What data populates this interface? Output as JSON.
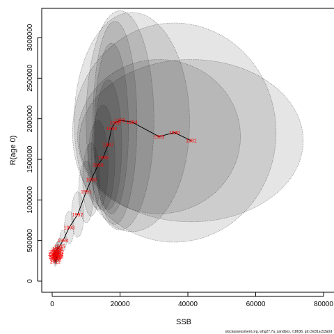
{
  "chart_data": {
    "type": "scatter",
    "title": "",
    "xlabel": "SSB",
    "ylabel": "R(age 0)",
    "xlim": [
      -3000,
      83000
    ],
    "ylim": [
      -150000,
      3250000
    ],
    "xticks": [
      0,
      20000,
      40000,
      60000,
      80000
    ],
    "xtick_labels": [
      "0",
      "20000",
      "40000",
      "60000",
      "80000"
    ],
    "yticks": [
      0,
      500000,
      1000000,
      1500000,
      2000000,
      2500000,
      3000000
    ],
    "ytick_labels": [
      "0",
      "500000",
      "1000000",
      "1500000",
      "2000000",
      "2500000",
      "3000000"
    ],
    "grid": false,
    "footer": "stockassessment.org, whg27.7a_sandbox, r18636, git:c9c81ac53a0d",
    "points": [
      {
        "year": "1981",
        "ssb": 41000,
        "rec": 1730000,
        "rx": 33000,
        "ry": 1000000
      },
      {
        "year": "1980",
        "ssb": 36000,
        "rec": 1830000,
        "rx": 30000,
        "ry": 1350000
      },
      {
        "year": "1983",
        "ssb": 31500,
        "rec": 1780000,
        "rx": 24000,
        "ry": 950000
      },
      {
        "year": "1984",
        "ssb": 23500,
        "rec": 1960000,
        "rx": 17000,
        "ry": 1350000
      },
      {
        "year": "1985",
        "ssb": 20000,
        "rec": 1980000,
        "rx": 10000,
        "ry": 1350000
      },
      {
        "year": "1986",
        "ssb": 18500,
        "rec": 1950000,
        "rx": 6500,
        "ry": 1250000
      },
      {
        "year": "1988",
        "ssb": 17500,
        "rec": 1880000,
        "rx": 5000,
        "ry": 1050000
      },
      {
        "year": "1987",
        "ssb": 16500,
        "rec": 1680000,
        "rx": 4000,
        "ry": 800000
      },
      {
        "year": "1988",
        "ssb": 15000,
        "rec": 1520000,
        "rx": 3500,
        "ry": 650000
      },
      {
        "year": "1989",
        "ssb": 13500,
        "rec": 1430000,
        "rx": 3000,
        "ry": 550000
      },
      {
        "year": "1990",
        "ssb": 11500,
        "rec": 1250000,
        "rx": 2500,
        "ry": 450000
      },
      {
        "year": "1991",
        "ssb": 10000,
        "rec": 1100000,
        "rx": 2200,
        "ry": 380000
      },
      {
        "year": "1992",
        "ssb": 7500,
        "rec": 820000,
        "rx": 1800,
        "ry": 280000
      },
      {
        "year": "1993",
        "ssb": 5000,
        "rec": 660000,
        "rx": 1400,
        "ry": 200000
      },
      {
        "year": "1994",
        "ssb": 3200,
        "rec": 500000,
        "rx": 1000,
        "ry": 130000
      },
      {
        "year": "1995",
        "ssb": 2200,
        "rec": 430000,
        "rx": 700,
        "ry": 100000
      },
      {
        "year": "1996",
        "ssb": 1600,
        "rec": 400000,
        "rx": 500,
        "ry": 90000
      },
      {
        "year": "1997",
        "ssb": 1200,
        "rec": 370000,
        "rx": 400,
        "ry": 80000
      },
      {
        "year": "1998",
        "ssb": 900,
        "rec": 340000,
        "rx": 350,
        "ry": 75000
      },
      {
        "year": "1999",
        "ssb": 1400,
        "rec": 310000,
        "rx": 400,
        "ry": 75000
      },
      {
        "year": "2000",
        "ssb": 800,
        "rec": 290000,
        "rx": 300,
        "ry": 70000
      },
      {
        "year": "2001",
        "ssb": 1800,
        "rec": 330000,
        "rx": 450,
        "ry": 80000
      },
      {
        "year": "2002",
        "ssb": 600,
        "rec": 360000,
        "rx": 250,
        "ry": 70000
      },
      {
        "year": "2003",
        "ssb": 1000,
        "rec": 280000,
        "rx": 300,
        "ry": 65000
      },
      {
        "year": "2004",
        "ssb": 1300,
        "rec": 390000,
        "rx": 350,
        "ry": 80000
      },
      {
        "year": "2005",
        "ssb": 700,
        "rec": 320000,
        "rx": 250,
        "ry": 70000
      },
      {
        "year": "2006",
        "ssb": 1500,
        "rec": 350000,
        "rx": 350,
        "ry": 75000
      },
      {
        "year": "2007",
        "ssb": 500,
        "rec": 300000,
        "rx": 250,
        "ry": 65000
      },
      {
        "year": "2008",
        "ssb": 1100,
        "rec": 260000,
        "rx": 300,
        "ry": 60000
      },
      {
        "year": "2009",
        "ssb": 1700,
        "rec": 300000,
        "rx": 400,
        "ry": 70000
      },
      {
        "year": "2010",
        "ssb": 400,
        "rec": 330000,
        "rx": 200,
        "ry": 70000
      },
      {
        "year": "2011",
        "ssb": 900,
        "rec": 240000,
        "rx": 300,
        "ry": 60000
      },
      {
        "year": "2012",
        "ssb": 1900,
        "rec": 360000,
        "rx": 450,
        "ry": 75000
      },
      {
        "year": "2013",
        "ssb": 1200,
        "rec": 290000,
        "rx": 350,
        "ry": 65000
      }
    ]
  }
}
